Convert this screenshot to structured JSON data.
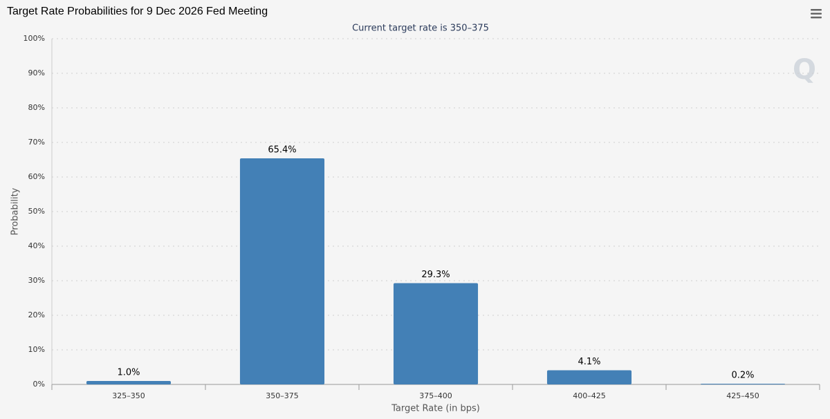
{
  "chart_data": {
    "type": "bar",
    "title": "Target Rate Probabilities for 9 Dec 2026 Fed Meeting",
    "subtitle": "Current target rate is 350–375",
    "x_label": "Target Rate (in bps)",
    "y_label": "Probability",
    "categories": [
      "325–350",
      "350–375",
      "375–400",
      "400–425",
      "425–450"
    ],
    "values": [
      1.0,
      65.4,
      29.3,
      4.1,
      0.2
    ],
    "value_labels": [
      "1.0%",
      "65.4%",
      "29.3%",
      "4.1%",
      "0.2%"
    ],
    "color": "#4380b6",
    "ylim": [
      0,
      100
    ],
    "yticks": [
      {
        "value": 0,
        "label": "0%"
      },
      {
        "value": 10,
        "label": "10%"
      },
      {
        "value": 20,
        "label": "20%"
      },
      {
        "value": 30,
        "label": "30%"
      },
      {
        "value": 40,
        "label": "40%"
      },
      {
        "value": 50,
        "label": "50%"
      },
      {
        "value": 60,
        "label": "60%"
      },
      {
        "value": 70,
        "label": "70%"
      },
      {
        "value": 80,
        "label": "80%"
      },
      {
        "value": 90,
        "label": "90%"
      },
      {
        "value": 100,
        "label": "100%"
      }
    ],
    "grid": true
  }
}
